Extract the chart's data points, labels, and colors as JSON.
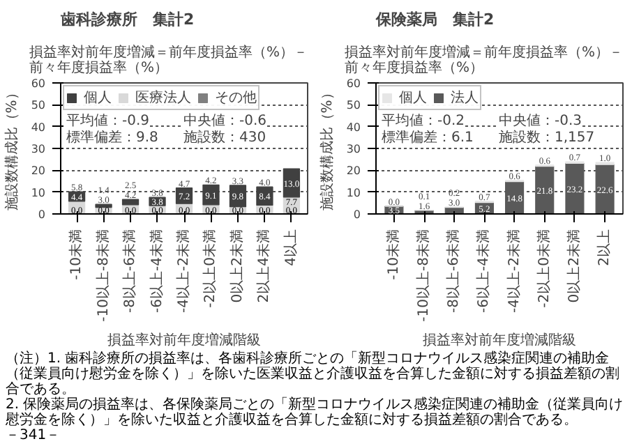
{
  "chart_data": [
    {
      "type": "bar",
      "stacked": true,
      "title": "歯科診療所　集計2",
      "subtitle": "損益率対前年度増減＝前年度損益率（%）－前々年度損益率（%）",
      "xlabel": "損益率対前年度増減階級",
      "ylabel": "施設数構成比（%）",
      "categories": [
        "-10未満",
        "-10以上-8未満",
        "-8以上-6未満",
        "-6以上-4未満",
        "-4以上-2未満",
        "-2以上0未満",
        "0以上2未満",
        "2以上4未満",
        "4以上"
      ],
      "series": [
        {
          "name": "その他",
          "color": "#808080",
          "values": [
            0,
            0,
            0,
            0,
            0,
            0,
            0,
            0,
            0
          ],
          "value_labels": [
            "0.0",
            "0.0",
            "0.0",
            "0.0",
            "0.0",
            "0.0",
            "0.0",
            "0.0",
            "0.0"
          ]
        },
        {
          "name": "医療法人",
          "color": "#d9d9d9",
          "values": [
            5.8,
            3,
            4.2,
            3.8,
            4.7,
            4.2,
            3.3,
            4,
            7.7
          ],
          "value_labels": [
            "5.8",
            "3.0",
            "4.2",
            "3.8",
            "4.7",
            "4.2",
            "3.3",
            "4.0",
            "7.7"
          ]
        },
        {
          "name": "個人",
          "color": "#404040",
          "values": [
            4.4,
            1.4,
            2.5,
            3.8,
            7.2,
            9.1,
            9.8,
            8.4,
            13
          ],
          "value_labels": [
            "4.4",
            "1.4",
            "2.5",
            "3.8",
            "7.2",
            "9.1",
            "9.8",
            "8.4",
            "13.0"
          ]
        }
      ],
      "ylim": [
        0,
        60
      ],
      "yticks": [
        0,
        10,
        20,
        30,
        40,
        50,
        60
      ],
      "grid": "y",
      "legend": "top left",
      "annotations": [
        "平均値：-0.9",
        "中央値：-0.6",
        "標準偏差：9.8",
        "施設数：430"
      ]
    },
    {
      "type": "bar",
      "stacked": true,
      "title": "保険薬局　集計2",
      "subtitle": "損益率対前年度増減＝前年度損益率（%）－前々年度損益率（%）",
      "xlabel": "損益率対前年度増減階級",
      "ylabel": "施設数構成比（%）",
      "categories": [
        "-10未満",
        "-10以上-8未満",
        "-8以上-6未満",
        "-6以上-4未満",
        "-4以上-2未満",
        "-2以上0未満",
        "0以上2未満",
        "2以上"
      ],
      "series": [
        {
          "name": "法人",
          "color": "#595959",
          "values": [
            3.5,
            1.6,
            3,
            5.2,
            14.8,
            21.8,
            23.2,
            22.6
          ],
          "value_labels": [
            "3.5",
            "1.6",
            "3.0",
            "5.2",
            "14.8",
            "21.8",
            "23.2",
            "22.6"
          ]
        },
        {
          "name": "個人",
          "color": "#e6e6e6",
          "values": [
            0,
            0.1,
            0.2,
            0.7,
            0.6,
            0.6,
            0.7,
            1
          ],
          "value_labels": [
            "0.0",
            "0.1",
            "0.2",
            "0.7",
            "0.6",
            "0.6",
            "0.7",
            "1.0"
          ]
        }
      ],
      "ylim": [
        0,
        60
      ],
      "yticks": [
        0,
        10,
        20,
        30,
        40,
        50,
        60
      ],
      "grid": "y",
      "legend": "top left",
      "annotations": [
        "平均値：-0.2",
        "中央値：-0.3",
        "標準偏差：6.1",
        "施設数：1,157"
      ]
    },
    {
      "type": "other",
      "annotations": [
        "（注）1. 歯科診療所の損益率は、各歯科診療所ごとの「新型コロナウイルス感染症関連の補助金（従業員向け慰労金を除く）」を除いた医業収益と介護収益を合算した金額に対する損益差額の割合である。",
        "2. 保険薬局の損益率は、各保険薬局ごとの「新型コロナウイルス感染症関連の補助金（従業員向け慰労金を除く）」を除いた収益と介護収益を合算した金額に対する損益差額の割合である。",
        "－341－"
      ]
    }
  ]
}
